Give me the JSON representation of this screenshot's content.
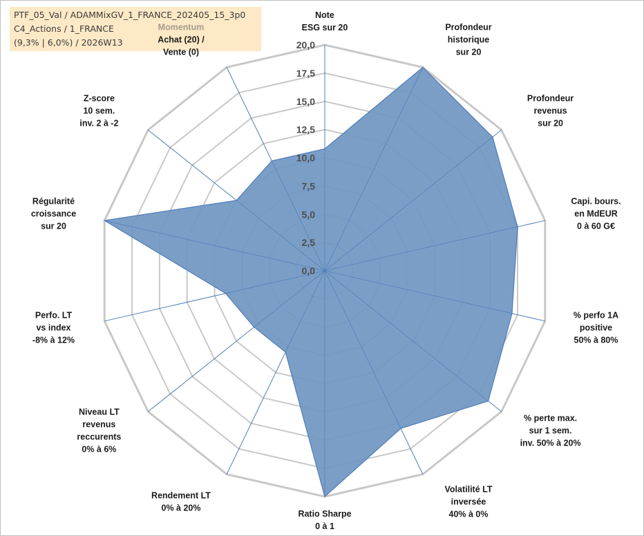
{
  "info": {
    "line1": "PTF_05_Val / ADAMMixGV_1_FRANCE_202405_15_3p0",
    "line2": "C4_Actions / 1_FRANCE",
    "line3": "(9,3% | 6,0%) / 2026W13"
  },
  "chart_data": {
    "type": "radar",
    "rmax": 20,
    "rmin": 0,
    "tick_labels": [
      "0,0",
      "2,5",
      "5,0",
      "7,5",
      "10,0",
      "12,5",
      "15,0",
      "17,5",
      "20,0"
    ],
    "colors": {
      "fill": "#7096c2",
      "stroke": "#4f7cb8",
      "grid": "#c8c8c8",
      "spoke": "#4f7cb8"
    },
    "axes": [
      {
        "lines": [
          "Note",
          "ESG sur 20"
        ],
        "value": 10.8
      },
      {
        "lines": [
          "Profondeur",
          "historique",
          "sur 20"
        ],
        "value": 20.0
      },
      {
        "lines": [
          "Profondeur",
          "revenus",
          "sur 20"
        ],
        "value": 19.0
      },
      {
        "lines": [
          "Capi. bours.",
          "en MdEUR",
          "0 à 60 G€"
        ],
        "value": 17.5
      },
      {
        "lines": [
          "% perfo 1A",
          "positive",
          "50% à 80%"
        ],
        "value": 17.0
      },
      {
        "lines": [
          "% perte max.",
          "sur 1 sem.",
          "inv. 50% à 20%"
        ],
        "value": 18.5
      },
      {
        "lines": [
          "Volatilité LT",
          "inversée",
          "40% à 0%"
        ],
        "value": 15.5
      },
      {
        "lines": [
          "Ratio Sharpe",
          "0 à 1"
        ],
        "value": 20.0
      },
      {
        "lines": [
          "Rendement LT",
          "0% à 20%"
        ],
        "value": 8.0
      },
      {
        "lines": [
          "Niveau LT",
          "revenus",
          "reccurents",
          "0% à 6%"
        ],
        "value": 8.0
      },
      {
        "lines": [
          "Perfo. LT",
          "vs index",
          "-8% à 12%"
        ],
        "value": 9.0
      },
      {
        "lines": [
          "Régularité",
          "croissance",
          "sur 20"
        ],
        "value": 20.0
      },
      {
        "lines": [
          "Z-score",
          "10 sem.",
          "inv. 2 à -2"
        ],
        "value": 10.0
      },
      {
        "lines": [
          "Momentum",
          "Achat (20) /",
          "Vente (0)"
        ],
        "value": 10.8
      }
    ]
  }
}
